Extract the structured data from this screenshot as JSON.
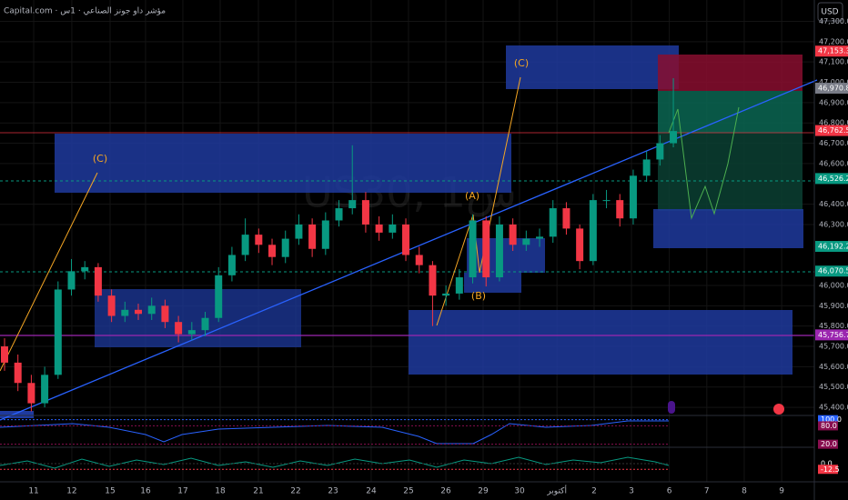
{
  "chart_data": {
    "type": "candlestick",
    "title": "Capital.com · مؤشر داو جونز الصناعي · 1س",
    "watermark": "US30, 1س",
    "currency": "USD",
    "open": [
      45700,
      45620,
      45520,
      45420,
      45560,
      45980,
      46070,
      46090,
      45950,
      45850,
      45880,
      45860,
      45900,
      45820,
      45760,
      45780,
      45840,
      46050,
      46150,
      46250,
      46200,
      46140,
      46230,
      46300,
      46180,
      46320,
      46380,
      46420,
      46300,
      46260,
      46300,
      46150,
      46100,
      45950,
      45960,
      46040,
      46320,
      46040,
      46300,
      46200,
      46230,
      46240,
      46380,
      46280,
      46120,
      46420,
      46420,
      46330,
      46540,
      46620,
      46700
    ],
    "high": [
      45740,
      45660,
      45560,
      45600,
      46020,
      46130,
      46120,
      46110,
      45980,
      45920,
      45910,
      45940,
      45930,
      45850,
      45820,
      45870,
      46090,
      46190,
      46330,
      46280,
      46230,
      46270,
      46350,
      46330,
      46360,
      46420,
      46690,
      46460,
      46340,
      46350,
      46330,
      46190,
      46120,
      46000,
      46080,
      46350,
      46340,
      46340,
      46330,
      46270,
      46280,
      46420,
      46410,
      46300,
      46450,
      46470,
      46450,
      46570,
      46660,
      46740,
      47020
    ],
    "low": [
      45580,
      45480,
      45380,
      45400,
      45540,
      45950,
      46030,
      45920,
      45820,
      45820,
      45830,
      45830,
      45790,
      45720,
      45730,
      45750,
      45820,
      46020,
      46120,
      46160,
      46100,
      46110,
      46200,
      46140,
      46150,
      46290,
      46350,
      46260,
      46220,
      46230,
      46120,
      46060,
      45800,
      45900,
      45930,
      46010,
      45995,
      46020,
      46170,
      46170,
      46190,
      46210,
      46250,
      46080,
      46100,
      46380,
      46290,
      46300,
      46510,
      46590,
      46680
    ],
    "close": [
      45620,
      45520,
      45420,
      45560,
      45980,
      46070,
      46090,
      45950,
      45850,
      45880,
      45860,
      45900,
      45820,
      45760,
      45780,
      45840,
      46050,
      46150,
      46250,
      46200,
      46140,
      46230,
      46300,
      46180,
      46320,
      46380,
      46420,
      46300,
      46260,
      46300,
      46150,
      46100,
      45950,
      45960,
      46040,
      46320,
      46040,
      46300,
      46200,
      46230,
      46240,
      46380,
      46280,
      46120,
      46420,
      46420,
      46330,
      46540,
      46620,
      46700,
      46760
    ],
    "up_color": "#089981",
    "down_color": "#f23645",
    "xlim": [
      -0.34,
      59.86
    ],
    "xticks": [
      {
        "value": 2.18,
        "label": "11"
      },
      {
        "value": 5.03,
        "label": "12"
      },
      {
        "value": 7.89,
        "label": "15"
      },
      {
        "value": 10.54,
        "label": "16"
      },
      {
        "value": 13.33,
        "label": "17"
      },
      {
        "value": 16.12,
        "label": "18"
      },
      {
        "value": 18.98,
        "label": "21"
      },
      {
        "value": 21.77,
        "label": "22"
      },
      {
        "value": 24.56,
        "label": "23"
      },
      {
        "value": 27.41,
        "label": "24"
      },
      {
        "value": 30.2,
        "label": "25"
      },
      {
        "value": 32.99,
        "label": "26"
      },
      {
        "value": 35.78,
        "label": "29"
      },
      {
        "value": 38.5,
        "label": "30"
      },
      {
        "value": 41.3,
        "label": "أكتوبر"
      },
      {
        "value": 44.08,
        "label": "2"
      },
      {
        "value": 46.87,
        "label": "3"
      },
      {
        "value": 49.7,
        "label": "6"
      },
      {
        "value": 52.5,
        "label": "7"
      },
      {
        "value": 55.3,
        "label": "8"
      },
      {
        "value": 58.1,
        "label": "9"
      }
    ],
    "ylim": [
      45369,
      47405
    ],
    "yticks": [
      {
        "value": 47300,
        "label": "47,300.0"
      },
      {
        "value": 47200,
        "label": "47,200.0"
      },
      {
        "value": 47100,
        "label": "47,100.0"
      },
      {
        "value": 47000,
        "label": "47,000.0"
      },
      {
        "value": 46900,
        "label": "46,900.0"
      },
      {
        "value": 46800,
        "label": "46,800.0"
      },
      {
        "value": 46700,
        "label": "46,700.0"
      },
      {
        "value": 46600,
        "label": "46,600.0"
      },
      {
        "value": 46400,
        "label": "46,400.0"
      },
      {
        "value": 46300,
        "label": "46,300.0"
      },
      {
        "value": 46000,
        "label": "46,000.0"
      },
      {
        "value": 45900,
        "label": "45,900.0"
      },
      {
        "value": 45800,
        "label": "45,800.0"
      },
      {
        "value": 45700,
        "label": "45,700.0"
      },
      {
        "value": 45600,
        "label": "45,600.0"
      },
      {
        "value": 45500,
        "label": "45,500.0"
      },
      {
        "value": 45400,
        "label": "45,400.0"
      }
    ],
    "price_tags": [
      {
        "value": 47153.3,
        "label": "47,153.3",
        "color": "#f23645"
      },
      {
        "value": 46970.8,
        "label": "46,970.8",
        "color": "#787b86"
      },
      {
        "value": 46762.5,
        "label": "46,762.5",
        "color": "#f23645"
      },
      {
        "value": 46526.2,
        "label": "46,526.2",
        "color": "#089981"
      },
      {
        "value": 46192.2,
        "label": "46,192.2",
        "color": "#089981"
      },
      {
        "value": 46070.5,
        "label": "46,070.5",
        "color": "#089981"
      },
      {
        "value": 45756.7,
        "label": "45,756.7",
        "color": "#9c27b0"
      }
    ],
    "annotations": [
      "(C)",
      "(C)",
      "(A)",
      "(B)"
    ],
    "indicators": [
      {
        "ylim": [
          10,
          102
        ],
        "ticks": [
          {
            "value": 100,
            "label": "100.0",
            "color": "#2962ff"
          },
          {
            "value": 80,
            "label": "80.0",
            "color": "#880e4f"
          },
          {
            "value": 20,
            "label": "20.0",
            "color": "#880e4f"
          }
        ]
      },
      {
        "ylim": [
          -40,
          30
        ],
        "ticks": [
          {
            "value": 0,
            "label": "0.0",
            "color": "#000000"
          },
          {
            "value": -12.5,
            "label": "-12.5",
            "color": "#f23645"
          }
        ]
      }
    ]
  }
}
